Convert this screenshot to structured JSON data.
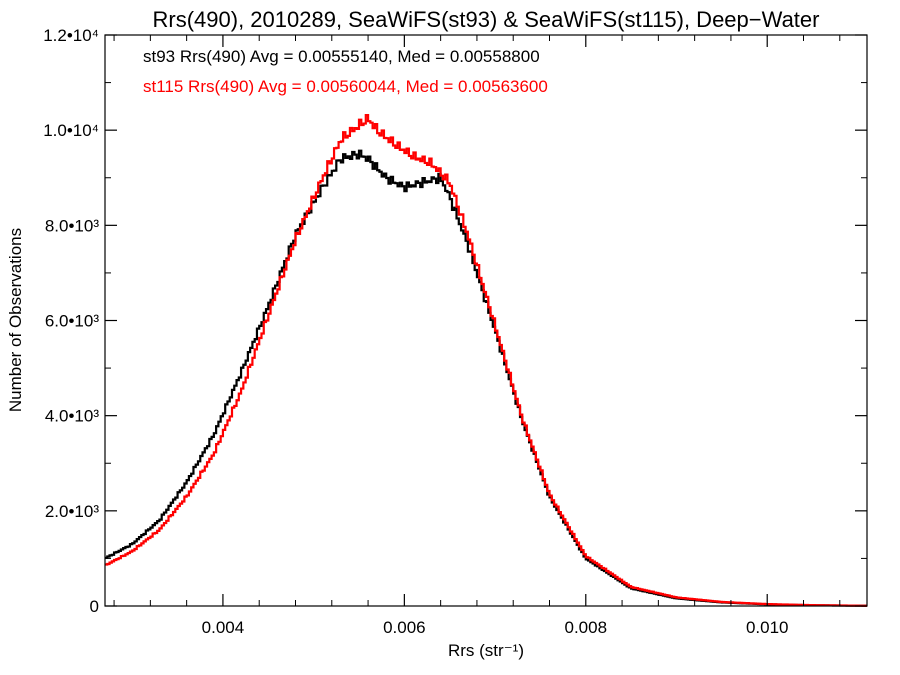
{
  "chart_data": {
    "type": "line",
    "step": true,
    "title": "Rrs(490), 2010289, SeaWiFS(st93) & SeaWiFS(st115), Deep−Water",
    "xlabel": "Rrs (str⁻¹)",
    "ylabel": "Number of Observations",
    "xlim": [
      0.0027,
      0.0111
    ],
    "ylim": [
      0,
      12000
    ],
    "grid": false,
    "x_ticks": [
      {
        "value": 0.004,
        "label": "0.004"
      },
      {
        "value": 0.006,
        "label": "0.006"
      },
      {
        "value": 0.008,
        "label": "0.008"
      },
      {
        "value": 0.01,
        "label": "0.010"
      }
    ],
    "y_ticks": [
      {
        "value": 0,
        "label": "0"
      },
      {
        "value": 2000,
        "label": "2.0•10³"
      },
      {
        "value": 4000,
        "label": "4.0•10³"
      },
      {
        "value": 6000,
        "label": "6.0•10³"
      },
      {
        "value": 8000,
        "label": "8.0•10³"
      },
      {
        "value": 10000,
        "label": "1.0•10⁴"
      },
      {
        "value": 12000,
        "label": "1.2•10⁴"
      }
    ],
    "annotations": [
      {
        "text": "st93 Rrs(490) Avg = 0.00555140, Med = 0.00558800",
        "color": "#000000"
      },
      {
        "text": "st115 Rrs(490) Avg = 0.00560044, Med = 0.00563600",
        "color": "#ff0000"
      }
    ],
    "series": [
      {
        "id": "st93",
        "color": "#000000",
        "x": [
          0.0027,
          0.003,
          0.0033,
          0.0036,
          0.0039,
          0.0042,
          0.0045,
          0.0048,
          0.0051,
          0.0053,
          0.0055,
          0.0056,
          0.0058,
          0.006,
          0.0062,
          0.0064,
          0.0065,
          0.0067,
          0.007,
          0.0073,
          0.0076,
          0.008,
          0.0085,
          0.009,
          0.0095,
          0.01,
          0.0105,
          0.0111
        ],
        "y": [
          1000,
          1300,
          1800,
          2600,
          3600,
          4900,
          6300,
          7800,
          8800,
          9400,
          9500,
          9400,
          9000,
          8800,
          8900,
          9000,
          8600,
          7600,
          5800,
          3900,
          2300,
          1000,
          370,
          160,
          75,
          35,
          15,
          5
        ]
      },
      {
        "id": "st115",
        "color": "#ff0000",
        "x": [
          0.0027,
          0.003,
          0.0033,
          0.0036,
          0.0039,
          0.0042,
          0.0045,
          0.0048,
          0.0051,
          0.0053,
          0.0055,
          0.0056,
          0.0057,
          0.0059,
          0.0061,
          0.0063,
          0.0065,
          0.0067,
          0.007,
          0.0073,
          0.0076,
          0.008,
          0.0085,
          0.009,
          0.0095,
          0.01,
          0.0105,
          0.0111
        ],
        "y": [
          850,
          1150,
          1600,
          2300,
          3200,
          4500,
          6100,
          7700,
          9000,
          9800,
          10100,
          10250,
          10000,
          9700,
          9450,
          9300,
          8900,
          7800,
          5900,
          3950,
          2350,
          1050,
          400,
          180,
          85,
          40,
          18,
          5
        ]
      }
    ]
  }
}
